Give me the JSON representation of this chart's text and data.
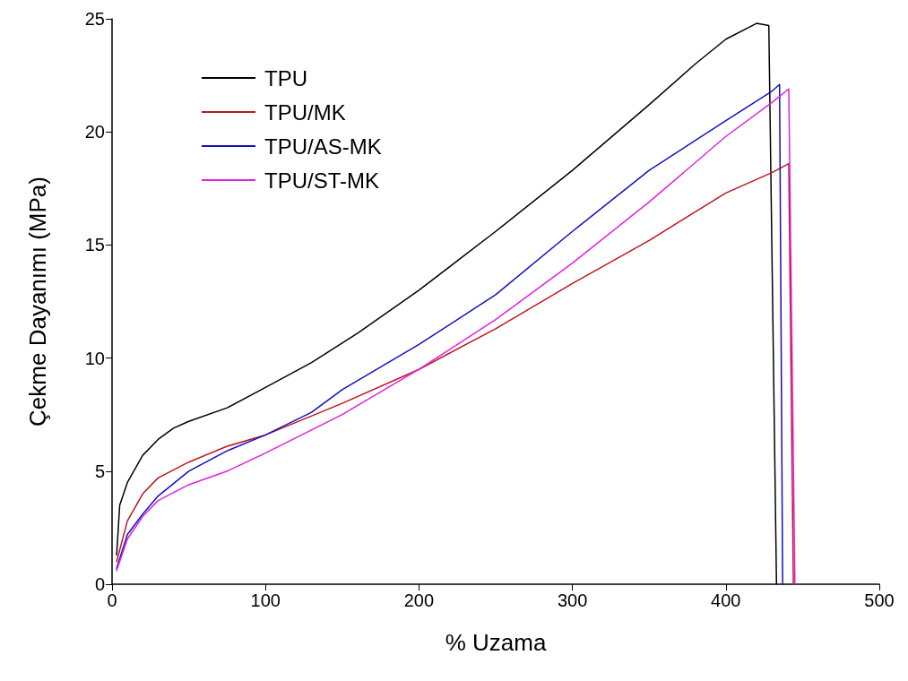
{
  "chart_data": {
    "type": "line",
    "xlabel": "% Uzama",
    "ylabel": "Çekme Dayanımı (MPa)",
    "xlim": [
      0,
      500
    ],
    "xticks": [
      0,
      100,
      200,
      300,
      400,
      500
    ],
    "ylim": [
      0,
      25
    ],
    "yticks": [
      0,
      5,
      10,
      15,
      20,
      25
    ],
    "grid": false,
    "legend": "top left",
    "marker": "none",
    "line_style": "solid",
    "series": [
      {
        "name": "TPU",
        "color": "#000000",
        "x": [
          3,
          5,
          10,
          20,
          30,
          40,
          50,
          75,
          100,
          130,
          160,
          200,
          250,
          300,
          350,
          380,
          400,
          420,
          428,
          433
        ],
        "values": [
          1.3,
          3.5,
          4.5,
          5.7,
          6.4,
          6.9,
          7.2,
          7.8,
          8.7,
          9.8,
          11.1,
          13.0,
          15.6,
          18.3,
          21.2,
          23.0,
          24.1,
          24.8,
          24.7,
          0
        ]
      },
      {
        "name": "TPU/MK",
        "color": "#c0141c",
        "x": [
          3,
          10,
          20,
          30,
          50,
          75,
          100,
          150,
          200,
          250,
          300,
          350,
          400,
          430,
          441,
          444
        ],
        "values": [
          1.0,
          2.8,
          4.0,
          4.7,
          5.4,
          6.1,
          6.6,
          8.0,
          9.5,
          11.3,
          13.3,
          15.2,
          17.3,
          18.2,
          18.6,
          0
        ]
      },
      {
        "name": "TPU/AS-MK",
        "color": "#1010c0",
        "x": [
          3,
          10,
          20,
          30,
          50,
          75,
          100,
          130,
          150,
          200,
          250,
          300,
          350,
          400,
          430,
          435,
          437
        ],
        "values": [
          0.7,
          2.2,
          3.1,
          3.9,
          5.0,
          5.9,
          6.6,
          7.6,
          8.6,
          10.6,
          12.8,
          15.6,
          18.3,
          20.5,
          21.8,
          22.1,
          0
        ]
      },
      {
        "name": "TPU/ST-MK",
        "color": "#e020e0",
        "x": [
          3,
          10,
          20,
          30,
          50,
          75,
          100,
          150,
          200,
          250,
          300,
          350,
          400,
          430,
          441,
          445
        ],
        "values": [
          0.6,
          2.0,
          3.0,
          3.7,
          4.4,
          5.0,
          5.8,
          7.5,
          9.5,
          11.7,
          14.2,
          16.9,
          19.8,
          21.3,
          21.9,
          0
        ]
      }
    ]
  }
}
